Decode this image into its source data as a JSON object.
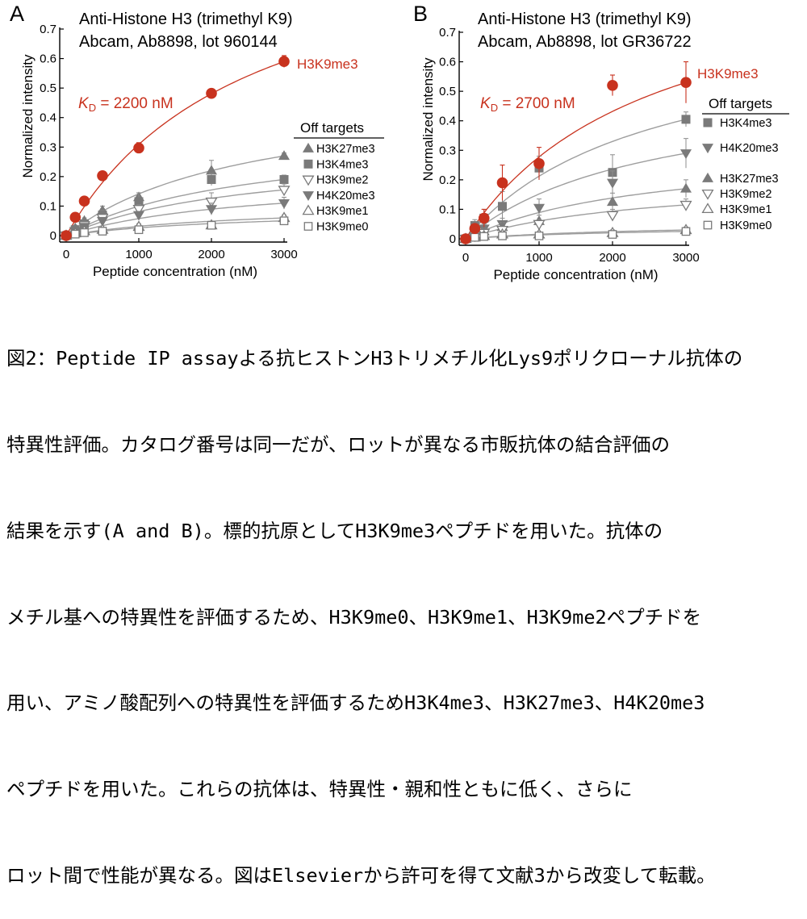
{
  "chart_data": [
    {
      "panel_label": "A",
      "type": "scatter",
      "title_lines": [
        "Anti-Histone H3 (trimethyl K9)",
        "Abcam, Ab8898, lot 960144"
      ],
      "xlabel": "Peptide concentration (nM)",
      "ylabel": "Normalized intensity",
      "xlim": [
        0,
        3000
      ],
      "ylim": [
        0,
        0.7
      ],
      "xticks": [
        0,
        1000,
        2000,
        3000
      ],
      "yticks": [
        0,
        0.1,
        0.2,
        0.3,
        0.4,
        0.5,
        0.6,
        0.7
      ],
      "kd_label": {
        "k": "K",
        "sub": "D",
        "rest": " = 2200 nM"
      },
      "legend_title": "Off targets",
      "target": {
        "name": "H3K9me3",
        "color": "#c8321e",
        "x": [
          0,
          125,
          250,
          500,
          1000,
          2000,
          3000
        ],
        "y": [
          0,
          0.062,
          0.117,
          0.203,
          0.297,
          0.482,
          0.59
        ],
        "err": [
          0.008,
          0.01,
          0.01,
          0.01,
          0.018,
          0.008,
          0.02
        ]
      },
      "off_targets": [
        {
          "name": "H3K27me3",
          "marker": "triangle-up-filled",
          "x": [
            0,
            125,
            250,
            500,
            1000,
            2000,
            3000
          ],
          "y": [
            0,
            0.025,
            0.05,
            0.085,
            0.13,
            0.22,
            0.27
          ],
          "err": [
            0.005,
            0.01,
            0.01,
            0.015,
            0.015,
            0.035,
            0.01
          ]
        },
        {
          "name": "H3K4me3",
          "marker": "square-filled",
          "x": [
            0,
            125,
            250,
            500,
            1000,
            2000,
            3000
          ],
          "y": [
            0,
            0.02,
            0.04,
            0.07,
            0.115,
            0.19,
            0.19
          ],
          "err": [
            0.005,
            0.01,
            0.01,
            0.015,
            0.03,
            0.02,
            0.015
          ]
        },
        {
          "name": "H3K9me2",
          "marker": "triangle-down-open",
          "x": [
            0,
            125,
            250,
            500,
            1000,
            2000,
            3000
          ],
          "y": [
            0,
            0.015,
            0.035,
            0.06,
            0.09,
            0.115,
            0.155
          ],
          "err": [
            0.005,
            0.01,
            0.01,
            0.01,
            0.015,
            0.03,
            0.02
          ]
        },
        {
          "name": "H4K20me3",
          "marker": "triangle-down-filled",
          "x": [
            0,
            125,
            250,
            500,
            1000,
            2000,
            3000
          ],
          "y": [
            0,
            0.015,
            0.03,
            0.05,
            0.07,
            0.09,
            0.11
          ],
          "err": [
            0.005,
            0.008,
            0.008,
            0.01,
            0.012,
            0.02,
            0.02
          ]
        },
        {
          "name": "H3K9me1",
          "marker": "triangle-up-open",
          "x": [
            0,
            125,
            250,
            500,
            1000,
            2000,
            3000
          ],
          "y": [
            0,
            0.008,
            0.015,
            0.02,
            0.03,
            0.035,
            0.06
          ],
          "err": [
            0.005,
            0.006,
            0.006,
            0.008,
            0.01,
            0.01,
            0.01
          ]
        },
        {
          "name": "H3K9me0",
          "marker": "square-open",
          "x": [
            0,
            125,
            250,
            500,
            1000,
            2000,
            3000
          ],
          "y": [
            0,
            0.005,
            0.01,
            0.015,
            0.02,
            0.035,
            0.05
          ],
          "err": [
            0.004,
            0.005,
            0.005,
            0.006,
            0.008,
            0.01,
            0.01
          ]
        }
      ]
    },
    {
      "panel_label": "B",
      "type": "scatter",
      "title_lines": [
        "Anti-Histone H3 (trimethyl K9)",
        "Abcam, Ab8898, lot GR36722"
      ],
      "xlabel": "Peptide concentration (nM)",
      "ylabel": "Normalized intensity",
      "xlim": [
        0,
        3000
      ],
      "ylim": [
        0,
        0.7
      ],
      "xticks": [
        0,
        1000,
        2000,
        3000
      ],
      "yticks": [
        0,
        0.1,
        0.2,
        0.3,
        0.4,
        0.5,
        0.6,
        0.7
      ],
      "kd_label": {
        "k": "K",
        "sub": "D",
        "rest": " = 2700 nM"
      },
      "legend_title": "Off targets",
      "target": {
        "name": "H3K9me3",
        "color": "#c8321e",
        "x": [
          0,
          125,
          250,
          500,
          1000,
          2000,
          3000
        ],
        "y": [
          0,
          0.035,
          0.07,
          0.19,
          0.255,
          0.52,
          0.53
        ],
        "err": [
          0.008,
          0.015,
          0.03,
          0.06,
          0.055,
          0.035,
          0.07
        ]
      },
      "off_targets": [
        {
          "name": "H3K4me3",
          "marker": "square-filled",
          "x": [
            0,
            125,
            250,
            500,
            1000,
            2000,
            3000
          ],
          "y": [
            0,
            0.045,
            0.07,
            0.11,
            0.24,
            0.225,
            0.405
          ],
          "err": [
            0.006,
            0.02,
            0.03,
            0.05,
            0.04,
            0.06,
            0.025
          ]
        },
        {
          "name": "H4K20me3",
          "marker": "triangle-down-filled",
          "x": [
            0,
            125,
            250,
            500,
            1000,
            2000,
            3000
          ],
          "y": [
            0,
            0.02,
            0.035,
            0.05,
            0.105,
            0.19,
            0.29
          ],
          "err": [
            0.005,
            0.01,
            0.015,
            0.02,
            0.03,
            0.04,
            0.05
          ]
        },
        {
          "name": "H3K27me3",
          "marker": "triangle-up-filled",
          "x": [
            0,
            125,
            250,
            500,
            1000,
            2000,
            3000
          ],
          "y": [
            0,
            0.015,
            0.025,
            0.04,
            0.06,
            0.125,
            0.17
          ],
          "err": [
            0.005,
            0.01,
            0.01,
            0.015,
            0.02,
            0.03,
            0.03
          ]
        },
        {
          "name": "H3K9me2",
          "marker": "triangle-down-open",
          "x": [
            0,
            125,
            250,
            500,
            1000,
            2000,
            3000
          ],
          "y": [
            0,
            0.01,
            0.02,
            0.03,
            0.05,
            0.08,
            0.115
          ],
          "err": [
            0.005,
            0.008,
            0.01,
            0.01,
            0.015,
            0.02,
            0.02
          ]
        },
        {
          "name": "H3K9me1",
          "marker": "triangle-up-open",
          "x": [
            0,
            125,
            250,
            500,
            1000,
            2000,
            3000
          ],
          "y": [
            0,
            0.005,
            0.01,
            0.015,
            0.015,
            0.02,
            0.03
          ],
          "err": [
            0.004,
            0.005,
            0.005,
            0.006,
            0.008,
            0.01,
            0.01
          ]
        },
        {
          "name": "H3K9me0",
          "marker": "square-open",
          "x": [
            0,
            125,
            250,
            500,
            1000,
            2000,
            3000
          ],
          "y": [
            0,
            0.005,
            0.008,
            0.01,
            0.01,
            0.015,
            0.025
          ],
          "err": [
            0.004,
            0.004,
            0.005,
            0.005,
            0.006,
            0.008,
            0.01
          ]
        }
      ]
    }
  ],
  "caption": [
    "図2：Peptide IP assayよる抗ヒストンH3トリメチル化Lys9ポリクローナル抗体の",
    "特異性評価。カタログ番号は同一だが、ロットが異なる市販抗体の結合評価の",
    "結果を示す(A and B)。標的抗原としてH3K9me3ペプチドを用いた。抗体の",
    "メチル基への特異性を評価するため、H3K9me0、H3K9me1、H3K9me2ペプチドを",
    "用い、アミノ酸配列への特異性を評価するためH3K4me3、H3K27me3、H4K20me3",
    "ペプチドを用いた。これらの抗体は、特異性・親和性ともに低く、さらに",
    "ロット間で性能が異なる。図はElsevierから許可を得て文献3から改変して転載。"
  ]
}
